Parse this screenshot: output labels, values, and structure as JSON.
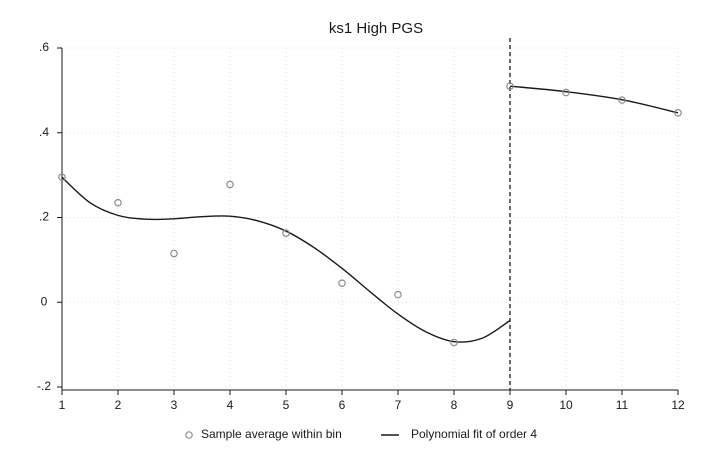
{
  "chart_data": {
    "type": "scatter",
    "title": "ks1 High PGS",
    "xlabel": "",
    "ylabel": "",
    "xlim": [
      1,
      12
    ],
    "ylim": [
      -0.2,
      0.6
    ],
    "x_ticks": [
      "1",
      "2",
      "3",
      "4",
      "5",
      "6",
      "7",
      "8",
      "9",
      "10",
      "11",
      "12"
    ],
    "y_ticks": [
      "-.2",
      "0",
      ".2",
      ".4",
      ".6"
    ],
    "y_tick_values": [
      -0.2,
      0,
      0.2,
      0.4,
      0.6
    ],
    "grid": true,
    "cutoff_x": 9,
    "legend_position": "bottom",
    "series": [
      {
        "name": "Sample average within bin",
        "kind": "points",
        "color": "#8c8c8c",
        "x": [
          1,
          2,
          3,
          4,
          5,
          6,
          7,
          8,
          9,
          10,
          11,
          12
        ],
        "y": [
          0.295,
          0.235,
          0.115,
          0.278,
          0.163,
          0.045,
          0.018,
          -0.095,
          0.51,
          0.495,
          0.477,
          0.447
        ]
      },
      {
        "name": "Polynomial fit of order 4",
        "kind": "line",
        "color": "#1a1a1a",
        "segments": [
          {
            "x": [
              1,
              1.5,
              2,
              2.5,
              3,
              3.5,
              4,
              4.5,
              5,
              5.5,
              6,
              6.5,
              7,
              7.5,
              8,
              8.5,
              9
            ],
            "y": [
              0.295,
              0.235,
              0.205,
              0.196,
              0.197,
              0.202,
              0.203,
              0.192,
              0.168,
              0.129,
              0.08,
              0.025,
              -0.028,
              -0.07,
              -0.093,
              -0.085,
              -0.043
            ]
          },
          {
            "x": [
              9,
              10,
              11,
              12
            ],
            "y": [
              0.51,
              0.497,
              0.478,
              0.447
            ]
          }
        ]
      }
    ]
  }
}
